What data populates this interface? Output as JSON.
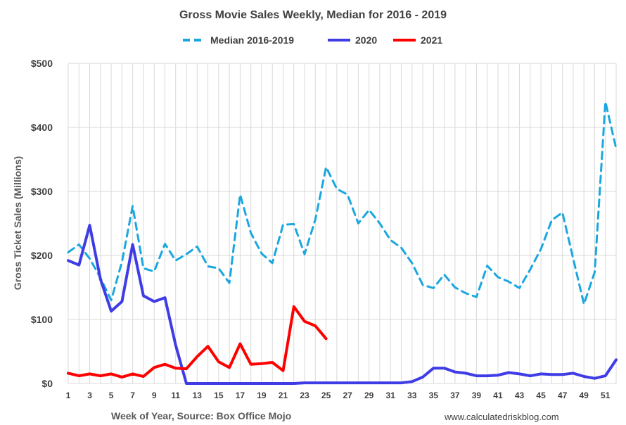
{
  "chart_data": {
    "type": "line",
    "title": "Gross Movie Sales Weekly, Median for 2016 - 2019",
    "xlabel": "Week of Year, Source: Box Office Mojo",
    "ylabel": "Gross Ticket Sales (Millions)",
    "source": "www.calculatedriskblog.com",
    "ylim": [
      0,
      500
    ],
    "xlim": [
      1,
      52
    ],
    "y_ticks": [
      0,
      100,
      200,
      300,
      400,
      500
    ],
    "y_tick_labels": [
      "$0",
      "$100",
      "$200",
      "$300",
      "$400",
      "$500"
    ],
    "x_ticks": [
      1,
      3,
      5,
      7,
      9,
      11,
      13,
      15,
      17,
      19,
      21,
      23,
      25,
      27,
      29,
      31,
      33,
      35,
      37,
      39,
      41,
      43,
      45,
      47,
      49,
      51
    ],
    "x_tick_labels": [
      "1",
      "3",
      "5",
      "7",
      "9",
      "11",
      "13",
      "15",
      "17",
      "19",
      "21",
      "23",
      "25",
      "27",
      "29",
      "31",
      "33",
      "35",
      "37",
      "39",
      "41",
      "43",
      "45",
      "47",
      "49",
      "51"
    ],
    "legend_position": "top",
    "series": [
      {
        "name": "Median 2016-2019",
        "color": "#1aa7e0",
        "style": "dashed",
        "x": [
          1,
          2,
          3,
          4,
          5,
          6,
          7,
          8,
          9,
          10,
          11,
          12,
          13,
          14,
          15,
          16,
          17,
          18,
          19,
          20,
          21,
          22,
          23,
          24,
          25,
          26,
          27,
          28,
          29,
          30,
          31,
          32,
          33,
          34,
          35,
          36,
          37,
          38,
          39,
          40,
          41,
          42,
          43,
          44,
          45,
          46,
          47,
          48,
          49,
          50,
          51,
          52
        ],
        "values": [
          205,
          217,
          195,
          165,
          130,
          190,
          277,
          180,
          175,
          218,
          192,
          202,
          214,
          183,
          180,
          157,
          295,
          235,
          203,
          188,
          248,
          249,
          202,
          256,
          338,
          304,
          295,
          250,
          271,
          250,
          224,
          212,
          188,
          154,
          149,
          170,
          150,
          141,
          135,
          184,
          166,
          159,
          149,
          178,
          210,
          255,
          267,
          195,
          124,
          174,
          440,
          367
        ]
      },
      {
        "name": "2020",
        "color": "#3f3ce6",
        "style": "solid",
        "x": [
          1,
          2,
          3,
          4,
          5,
          6,
          7,
          8,
          9,
          10,
          11,
          12,
          13,
          14,
          15,
          16,
          17,
          18,
          19,
          20,
          21,
          22,
          23,
          24,
          25,
          26,
          27,
          28,
          29,
          30,
          31,
          32,
          33,
          34,
          35,
          36,
          37,
          38,
          39,
          40,
          41,
          42,
          43,
          44,
          45,
          46,
          47,
          48,
          49,
          50,
          51,
          52
        ],
        "values": [
          192,
          185,
          247,
          163,
          113,
          128,
          217,
          137,
          128,
          134,
          60,
          0,
          0,
          0,
          0,
          0,
          0,
          0,
          0,
          0,
          0,
          0,
          1,
          1,
          1,
          1,
          1,
          1,
          1,
          1,
          1,
          1,
          3,
          10,
          24,
          24,
          18,
          16,
          12,
          12,
          13,
          17,
          15,
          12,
          15,
          14,
          14,
          16,
          11,
          8,
          12,
          37
        ]
      },
      {
        "name": "2021",
        "color": "#ff0000",
        "style": "solid",
        "x": [
          1,
          2,
          3,
          4,
          5,
          6,
          7,
          8,
          9,
          10,
          11,
          12,
          13,
          14,
          15,
          16,
          17,
          18,
          19,
          20,
          21,
          22,
          23,
          24,
          25
        ],
        "values": [
          16,
          12,
          15,
          12,
          15,
          10,
          15,
          11,
          25,
          30,
          24,
          23,
          42,
          58,
          34,
          25,
          62,
          30,
          31,
          33,
          20,
          120,
          97,
          90,
          70
        ]
      }
    ]
  }
}
